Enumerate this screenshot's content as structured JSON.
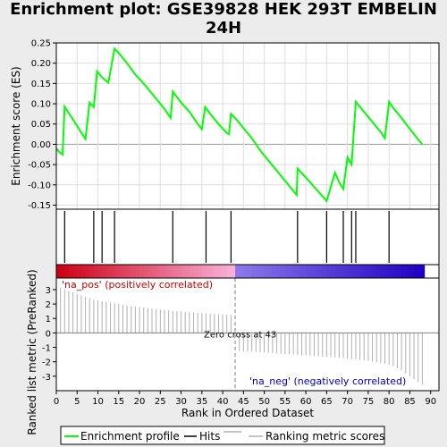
{
  "title": "Enrichment plot: GSE39828 HEK 293T EMBELIN\n24H",
  "colors": {
    "es_line": "#00ff00",
    "hits": "#000000",
    "metric": "#b0b0b0",
    "pos_label": "#cc0000",
    "neg_label": "#0000cc",
    "zero_line": "#808080"
  },
  "legend": {
    "es": "Enrichment profile",
    "hits": "Hits",
    "metric": "Ranking metric scores"
  },
  "chart_data": [
    {
      "type": "line",
      "name": "enrichment",
      "ylabel": "Enrichment score (ES)",
      "xlim": [
        0,
        92
      ],
      "ylim": [
        -0.16,
        0.25
      ],
      "yticks": [
        "0.25",
        "0.20",
        "0.15",
        "0.10",
        "0.05",
        "0.00",
        "-0.05",
        "-0.10",
        "-0.15"
      ],
      "grid": true,
      "x": [
        0,
        0.8,
        1.5,
        2,
        7,
        8,
        9,
        9.8,
        11,
        12.5,
        14,
        15,
        17,
        19,
        21,
        23,
        25,
        26,
        27.5,
        28,
        30,
        32,
        34,
        35,
        35.8,
        37,
        39,
        41,
        41.5,
        42,
        43,
        45,
        47,
        49,
        51,
        53,
        55,
        57,
        57.8,
        58,
        60,
        62,
        64,
        65,
        67,
        68,
        69,
        70,
        71,
        72,
        74,
        76,
        78,
        79,
        80,
        81,
        83,
        85,
        87,
        88
      ],
      "y": [
        -0.01,
        -0.02,
        -0.025,
        0.093,
        0.013,
        0.103,
        0.092,
        0.18,
        0.165,
        0.152,
        0.236,
        0.225,
        0.2,
        0.172,
        0.15,
        0.125,
        0.1,
        0.087,
        0.065,
        0.13,
        0.103,
        0.08,
        0.05,
        0.037,
        0.092,
        0.075,
        0.05,
        0.028,
        0.025,
        0.075,
        0.065,
        0.04,
        0.015,
        -0.015,
        -0.04,
        -0.065,
        -0.09,
        -0.115,
        -0.125,
        -0.06,
        -0.082,
        -0.105,
        -0.128,
        -0.14,
        -0.07,
        -0.093,
        -0.11,
        -0.032,
        -0.05,
        0.105,
        0.08,
        0.055,
        0.03,
        0.015,
        0.105,
        0.09,
        0.065,
        0.038,
        0.012,
        0.0
      ]
    },
    {
      "type": "bar",
      "name": "hits",
      "positions": [
        2,
        9,
        11,
        14,
        28,
        36,
        42,
        58,
        65,
        69,
        71,
        72,
        80
      ]
    },
    {
      "type": "bar",
      "name": "ranking_metric",
      "xlabel": "Rank in Ordered Dataset",
      "ylabel": "Ranked list metric (PreRanked)",
      "xlim": [
        0,
        92
      ],
      "ylim": [
        -4,
        3.8
      ],
      "xticks": [
        0,
        5,
        10,
        15,
        20,
        25,
        30,
        35,
        40,
        45,
        50,
        55,
        60,
        65,
        70,
        75,
        80,
        85,
        90
      ],
      "yticks": [
        "3",
        "2",
        "1",
        "0",
        "-1",
        "-2",
        "-3"
      ],
      "x": [
        1,
        2,
        3,
        4,
        5,
        6,
        7,
        8,
        9,
        10,
        11,
        12,
        13,
        14,
        15,
        16,
        17,
        18,
        19,
        20,
        21,
        22,
        23,
        24,
        25,
        26,
        27,
        28,
        29,
        30,
        31,
        32,
        33,
        34,
        35,
        36,
        37,
        38,
        39,
        40,
        41,
        42,
        43,
        44,
        45,
        46,
        47,
        48,
        49,
        50,
        51,
        52,
        53,
        54,
        55,
        56,
        57,
        58,
        59,
        60,
        61,
        62,
        63,
        64,
        65,
        66,
        67,
        68,
        69,
        70,
        71,
        72,
        73,
        74,
        75,
        76,
        77,
        78,
        79,
        80,
        81,
        82,
        83,
        84,
        85,
        86,
        87,
        88
      ],
      "values": [
        3.15,
        3.0,
        2.9,
        2.8,
        2.7,
        2.6,
        2.5,
        2.4,
        2.3,
        2.25,
        2.2,
        2.15,
        2.1,
        2.05,
        2.0,
        1.95,
        1.9,
        1.85,
        1.82,
        1.78,
        1.75,
        1.72,
        1.68,
        1.65,
        1.62,
        1.58,
        1.55,
        1.52,
        1.5,
        1.47,
        1.45,
        1.43,
        1.41,
        1.39,
        1.37,
        1.35,
        1.33,
        1.31,
        1.29,
        1.28,
        1.27,
        1.25,
        0.05,
        -1.25,
        -1.27,
        -1.29,
        -1.3,
        -1.32,
        -1.34,
        -1.36,
        -1.38,
        -1.4,
        -1.42,
        -1.44,
        -1.46,
        -1.48,
        -1.5,
        -1.52,
        -1.54,
        -1.56,
        -1.58,
        -1.6,
        -1.62,
        -1.64,
        -1.66,
        -1.68,
        -1.7,
        -1.72,
        -1.75,
        -1.78,
        -1.8,
        -1.83,
        -1.86,
        -1.9,
        -1.94,
        -1.98,
        -2.03,
        -2.08,
        -2.14,
        -2.2,
        -2.3,
        -2.45,
        -2.6,
        -2.8,
        -3.0,
        -3.2,
        -3.4,
        -3.6
      ],
      "zero_cross_label": "Zero cross at 43",
      "zero_cross": 43,
      "pos_label": "'na_pos' (positively correlated)",
      "neg_label": "'na_neg' (negatively correlated)"
    }
  ]
}
